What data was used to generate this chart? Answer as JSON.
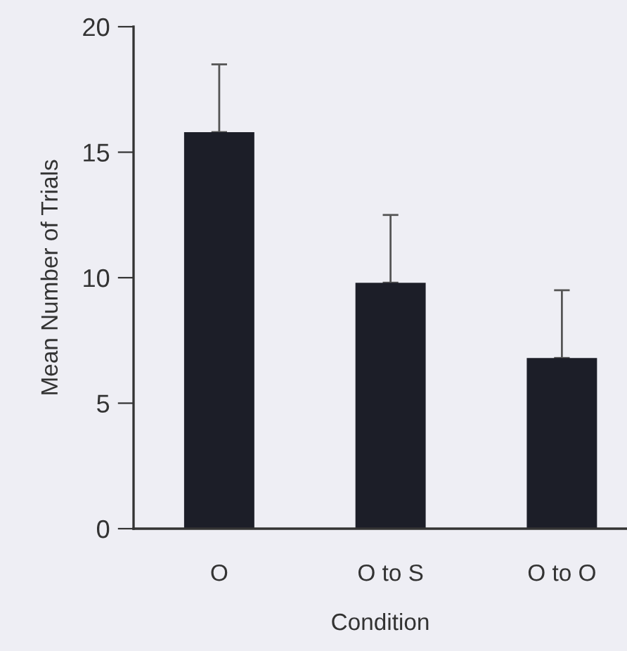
{
  "chart_data": {
    "type": "bar",
    "xlabel": "Condition",
    "ylabel": "Mean Number of Trials",
    "categories": [
      "O",
      "O to S",
      "O to O"
    ],
    "values": [
      15.8,
      9.8,
      6.8
    ],
    "errors": [
      [
        15.8,
        18.5
      ],
      [
        9.8,
        12.5
      ],
      [
        6.8,
        9.5
      ]
    ],
    "color": "#1c1e28",
    "ylim": [
      0,
      20
    ],
    "yticks": [
      0,
      5,
      10,
      15,
      20
    ],
    "grid": false,
    "legend": false
  }
}
